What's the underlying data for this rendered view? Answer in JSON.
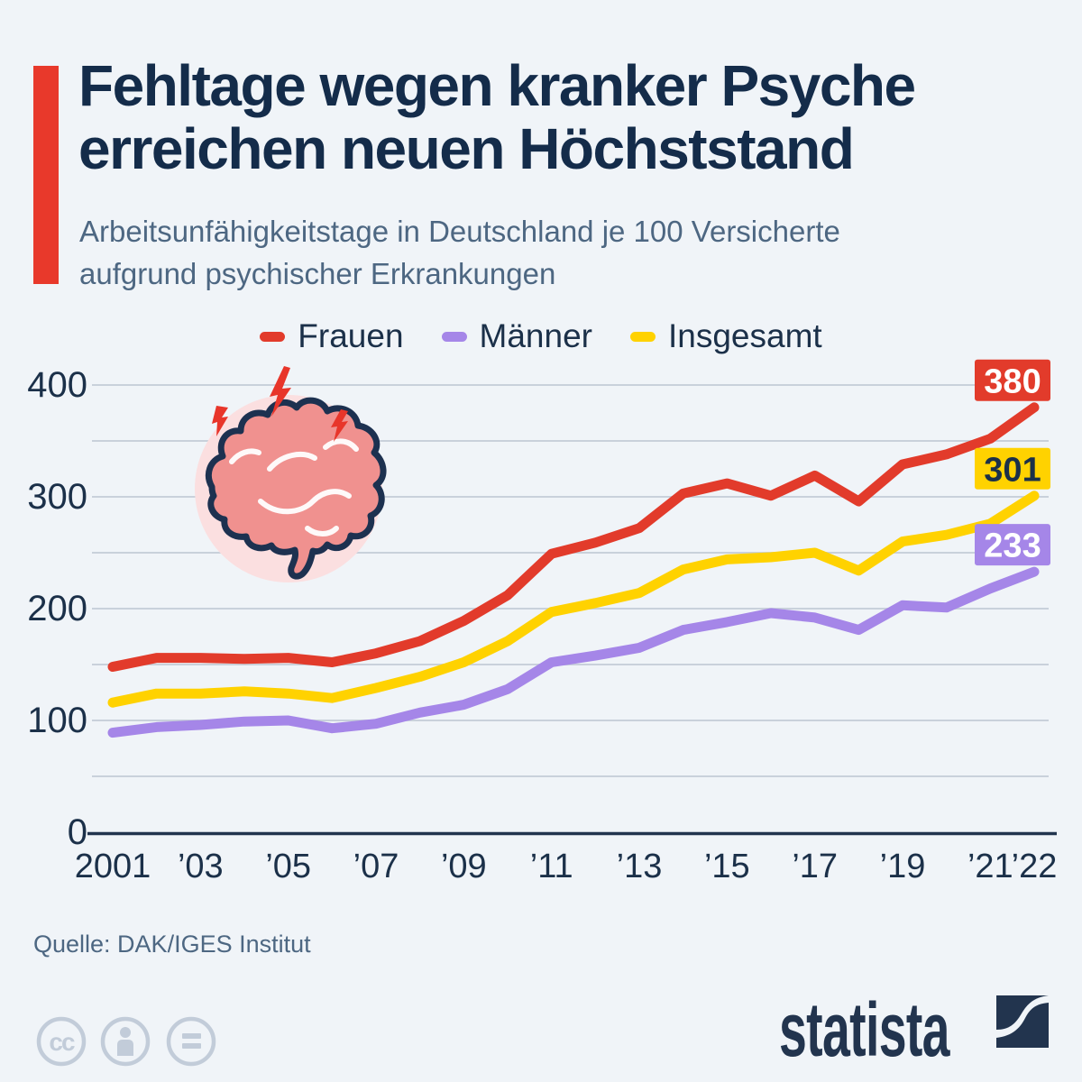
{
  "header": {
    "title": "Fehltage wegen kranker Psyche\nerreichen neuen Höchststand",
    "subtitle": "Arbeitsunfähigkeitstage in Deutschland je 100 Versicherte\naufgrund psychischer Erkrankungen"
  },
  "colors": {
    "background": "#f0f4f8",
    "accent_red": "#e8392b",
    "title_navy": "#142c4a",
    "text_slate": "#4d6782",
    "axis_navy": "#22344e",
    "grid_gray": "#c9d1db",
    "series_frauen": "#e23b2b",
    "series_maenner": "#a586e8",
    "series_insgesamt": "#ffd200",
    "brain_circle_pink": "#fbdfe0",
    "brain_coral": "#f0918f",
    "cc_icon_gray": "#c2ccd9"
  },
  "chart_data": {
    "type": "line",
    "title": "Fehltage wegen kranker Psyche erreichen neuen Höchststand",
    "subtitle": "Arbeitsunfähigkeitstage in Deutschland je 100 Versicherte aufgrund psychischer Erkrankungen",
    "x": [
      2001,
      2002,
      2003,
      2004,
      2005,
      2006,
      2007,
      2008,
      2009,
      2010,
      2011,
      2012,
      2013,
      2014,
      2015,
      2016,
      2017,
      2018,
      2019,
      2020,
      2021,
      2022
    ],
    "x_ticks": [
      {
        "i": 0,
        "label": "2001"
      },
      {
        "i": 2,
        "label": "’03"
      },
      {
        "i": 4,
        "label": "’05"
      },
      {
        "i": 6,
        "label": "’07"
      },
      {
        "i": 8,
        "label": "’09"
      },
      {
        "i": 10,
        "label": "’11"
      },
      {
        "i": 12,
        "label": "’13"
      },
      {
        "i": 14,
        "label": "’15"
      },
      {
        "i": 16,
        "label": "’17"
      },
      {
        "i": 18,
        "label": "’19"
      },
      {
        "i": 20,
        "label": "’21"
      },
      {
        "i": 21,
        "label": "’22"
      }
    ],
    "y_label_step": 100,
    "grid_step": 50,
    "ylim": [
      0,
      400
    ],
    "grid": "on",
    "legend_position": "top",
    "series": [
      {
        "name": "Frauen",
        "color": "#e23b2b",
        "badge_text_color": "#ffffff",
        "end_label": "380",
        "values": [
          148,
          156,
          156,
          155,
          156,
          152,
          160,
          171,
          189,
          212,
          249,
          259,
          272,
          303,
          312,
          301,
          319,
          296,
          329,
          338,
          352,
          380
        ]
      },
      {
        "name": "Männer",
        "color": "#a586e8",
        "badge_text_color": "#ffffff",
        "end_label": "233",
        "values": [
          89,
          94,
          96,
          99,
          100,
          93,
          97,
          107,
          114,
          128,
          152,
          158,
          165,
          181,
          188,
          196,
          192,
          181,
          203,
          201,
          218,
          233
        ]
      },
      {
        "name": "Insgesamt",
        "color": "#ffd200",
        "badge_text_color": "#1b3049",
        "end_label": "301",
        "values": [
          116,
          124,
          124,
          126,
          124,
          120,
          129,
          139,
          152,
          171,
          197,
          205,
          214,
          235,
          244,
          246,
          250,
          234,
          260,
          266,
          276,
          301
        ]
      }
    ],
    "y_axis_labels": [
      "0",
      "100",
      "200",
      "300",
      "400"
    ]
  },
  "footer": {
    "source": "Quelle: DAK/IGES Institut",
    "brand": "statista"
  }
}
